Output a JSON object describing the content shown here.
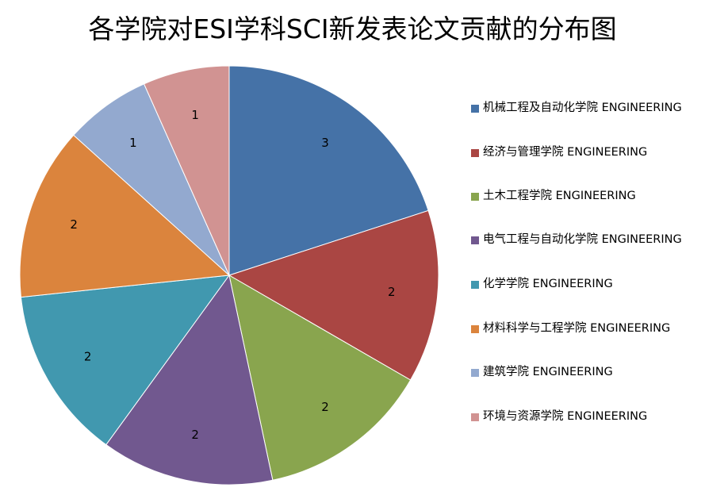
{
  "chart_data": {
    "type": "pie",
    "title": "各学院对ESI学科SCI新发表论文贡献的分布图",
    "categories": [
      "机械工程及自动化学院 ENGINEERING",
      "经济与管理学院 ENGINEERING",
      "土木工程学院 ENGINEERING",
      "电气工程与自动化学院 ENGINEERING",
      "化学学院 ENGINEERING",
      "材料科学与工程学院 ENGINEERING",
      "建筑学院 ENGINEERING",
      "环境与资源学院 ENGINEERING"
    ],
    "values": [
      3,
      2,
      2,
      2,
      2,
      2,
      1,
      1
    ],
    "data_labels": [
      "3",
      "2",
      "2",
      "2",
      "2",
      "2",
      "1",
      "1"
    ],
    "colors": [
      "#4572A7",
      "#AA4643",
      "#89A54E",
      "#71588F",
      "#4198AF",
      "#DB843D",
      "#93A9CF",
      "#D19392"
    ],
    "legend_position": "right",
    "start_angle": "12 o'clock",
    "direction": "clockwise"
  }
}
